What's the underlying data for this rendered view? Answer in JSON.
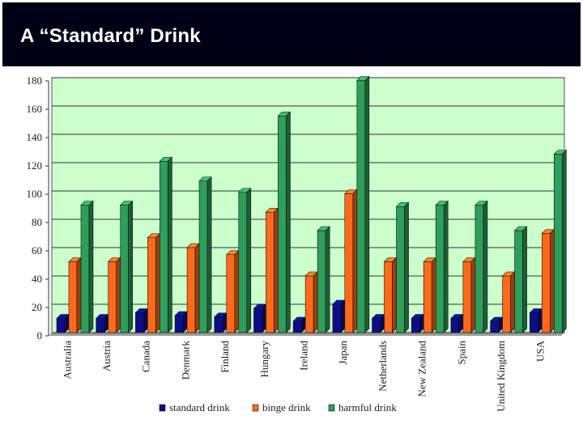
{
  "slide": {
    "title": "A “Standard” Drink"
  },
  "colors": {
    "title_bg": "#000016",
    "plot_bg": "#ccffcc",
    "standard": "#0d0d8a",
    "binge": "#ff6a1a",
    "harmful": "#2e9e5b"
  },
  "chart_data": {
    "type": "bar",
    "title": "",
    "xlabel": "",
    "ylabel": "",
    "ylim": [
      0,
      180
    ],
    "yticks": [
      0,
      20,
      40,
      60,
      80,
      100,
      120,
      140,
      160,
      180
    ],
    "grid": true,
    "legend_position": "bottom",
    "categories": [
      "Australia",
      "Austria",
      "Canada",
      "Denmark",
      "Finland",
      "Hungary",
      "Ireland",
      "Japan",
      "Netherlands",
      "New Zealand",
      "Spain",
      "United Kingdom",
      "USA"
    ],
    "series": [
      {
        "name": "standard drink",
        "values": [
          10,
          10,
          14,
          12,
          11,
          17,
          8,
          20,
          10,
          10,
          10,
          8,
          14
        ]
      },
      {
        "name": "binge drink",
        "values": [
          50,
          50,
          67,
          60,
          55,
          85,
          40,
          98,
          50,
          50,
          50,
          40,
          70
        ]
      },
      {
        "name": "harmful drink",
        "values": [
          90,
          90,
          121,
          107,
          99,
          153,
          72,
          178,
          89,
          90,
          90,
          72,
          126
        ]
      }
    ]
  }
}
